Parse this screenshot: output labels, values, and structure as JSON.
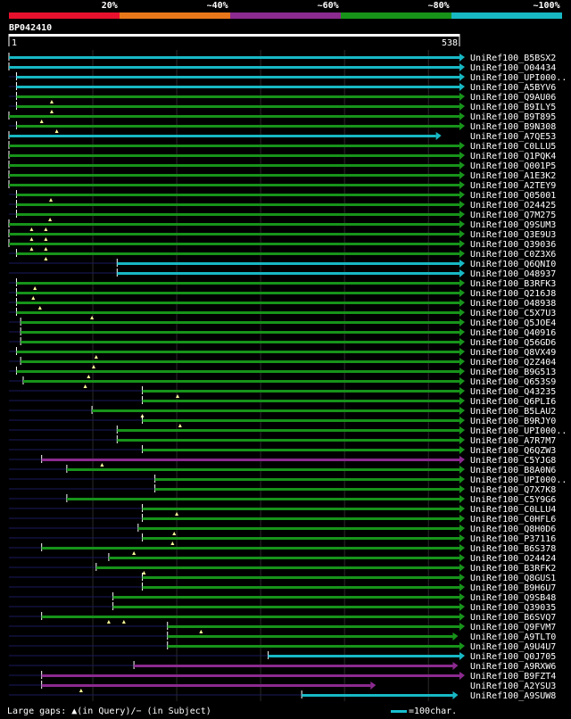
{
  "legend": {
    "labels": [
      "20%",
      "~40%",
      "~60%",
      "~80%",
      "~100%"
    ],
    "colors": [
      "#e8112d",
      "#e8771a",
      "#8b2a8f",
      "#17931a",
      "#17b8c4"
    ]
  },
  "query": {
    "id": "BP042410"
  },
  "footer": {
    "gaps_text": "Large gaps: ▲(in Query)/− (in Subject)",
    "scale_text": "=100char."
  },
  "chart_data": {
    "type": "alignment",
    "query_length": 538,
    "scale_start_label": "1",
    "scale_end_label": "538",
    "hits": [
      {
        "id": "UniRef100_B5BSX2",
        "start": 1,
        "end": 538,
        "identity": "~100%",
        "insertions": []
      },
      {
        "id": "UniRef100_O04434",
        "start": 1,
        "end": 538,
        "identity": "~100%",
        "insertions": []
      },
      {
        "id": "UniRef100_UPI000..",
        "start": 10,
        "end": 538,
        "identity": "~100%",
        "insertions": []
      },
      {
        "id": "UniRef100_A5BYV6",
        "start": 10,
        "end": 538,
        "identity": "~100%",
        "insertions": []
      },
      {
        "id": "UniRef100_Q9AU06",
        "start": 10,
        "end": 538,
        "identity": "~80%",
        "insertions": [
          52
        ]
      },
      {
        "id": "UniRef100_B9ILY5",
        "start": 10,
        "end": 538,
        "identity": "~80%",
        "insertions": [
          52
        ]
      },
      {
        "id": "UniRef100_B9T895",
        "start": -2,
        "end": 538,
        "identity": "~80%",
        "insertions": [
          40
        ]
      },
      {
        "id": "UniRef100_B9N308",
        "start": 10,
        "end": 538,
        "identity": "~80%",
        "insertions": [
          58
        ]
      },
      {
        "id": "UniRef100_A7QE53",
        "start": 1,
        "end": 510,
        "identity": "~100%",
        "insertions": []
      },
      {
        "id": "UniRef100_C0LLU5",
        "start": -2,
        "end": 538,
        "identity": "~80%",
        "insertions": []
      },
      {
        "id": "UniRef100_Q1PQK4",
        "start": 1,
        "end": 538,
        "identity": "~80%",
        "insertions": []
      },
      {
        "id": "UniRef100_Q001P5",
        "start": 1,
        "end": 538,
        "identity": "~80%",
        "insertions": []
      },
      {
        "id": "UniRef100_A1E3K2",
        "start": 1,
        "end": 538,
        "identity": "~80%",
        "insertions": []
      },
      {
        "id": "UniRef100_A2TEY9",
        "start": 1,
        "end": 538,
        "identity": "~80%",
        "insertions": []
      },
      {
        "id": "UniRef100_Q05001",
        "start": 10,
        "end": 538,
        "identity": "~80%",
        "insertions": [
          51
        ]
      },
      {
        "id": "UniRef100_O24425",
        "start": 10,
        "end": 538,
        "identity": "~80%",
        "insertions": []
      },
      {
        "id": "UniRef100_Q7M275",
        "start": 10,
        "end": 538,
        "identity": "~80%",
        "insertions": [
          50
        ]
      },
      {
        "id": "UniRef100_Q9SUM3",
        "start": 1,
        "end": 538,
        "identity": "~80%",
        "insertions": [
          28,
          45
        ]
      },
      {
        "id": "UniRef100_Q3E9U3",
        "start": 1,
        "end": 538,
        "identity": "~80%",
        "insertions": [
          28,
          45
        ]
      },
      {
        "id": "UniRef100_Q39036",
        "start": 1,
        "end": 538,
        "identity": "~80%",
        "insertions": [
          28,
          45
        ]
      },
      {
        "id": "UniRef100_C0Z3X6",
        "start": 10,
        "end": 538,
        "identity": "~80%",
        "insertions": [
          45
        ]
      },
      {
        "id": "UniRef100_Q6QNI0",
        "start": 130,
        "end": 538,
        "identity": "~100%",
        "insertions": []
      },
      {
        "id": "UniRef100_O48937",
        "start": 130,
        "end": 538,
        "identity": "~100%",
        "insertions": []
      },
      {
        "id": "UniRef100_B3RFK3",
        "start": 10,
        "end": 538,
        "identity": "~80%",
        "insertions": [
          32
        ]
      },
      {
        "id": "UniRef100_Q216J8",
        "start": 10,
        "end": 538,
        "identity": "~80%",
        "insertions": [
          30
        ]
      },
      {
        "id": "UniRef100_O48938",
        "start": 10,
        "end": 538,
        "identity": "~80%",
        "insertions": [
          38
        ]
      },
      {
        "id": "UniRef100_C5X7U3",
        "start": 10,
        "end": 538,
        "identity": "~80%",
        "insertions": [
          100
        ]
      },
      {
        "id": "UniRef100_Q5JOE4",
        "start": 15,
        "end": 538,
        "identity": "~80%",
        "insertions": []
      },
      {
        "id": "UniRef100_Q40916",
        "start": 15,
        "end": 538,
        "identity": "~80%",
        "insertions": []
      },
      {
        "id": "UniRef100_Q56GD6",
        "start": 15,
        "end": 538,
        "identity": "~80%",
        "insertions": []
      },
      {
        "id": "UniRef100_Q8VX49",
        "start": 10,
        "end": 538,
        "identity": "~80%",
        "insertions": [
          105
        ]
      },
      {
        "id": "UniRef100_Q2Z404",
        "start": 15,
        "end": 538,
        "identity": "~80%",
        "insertions": [
          102
        ]
      },
      {
        "id": "UniRef100_B9G513",
        "start": 10,
        "end": 538,
        "identity": "~80%",
        "insertions": [
          96
        ]
      },
      {
        "id": "UniRef100_Q653S9",
        "start": 18,
        "end": 538,
        "identity": "~80%",
        "insertions": [
          92
        ]
      },
      {
        "id": "UniRef100_Q43235",
        "start": 160,
        "end": 538,
        "identity": "~80%",
        "insertions": [
          202
        ]
      },
      {
        "id": "UniRef100_Q6PLI6",
        "start": 160,
        "end": 538,
        "identity": "~80%",
        "insertions": []
      },
      {
        "id": "UniRef100_B5LAU2",
        "start": 100,
        "end": 538,
        "identity": "~80%",
        "insertions": [
          160
        ]
      },
      {
        "id": "UniRef100_B9RJY0",
        "start": 160,
        "end": 538,
        "identity": "~80%",
        "insertions": [
          205
        ]
      },
      {
        "id": "UniRef100_UPI000..",
        "start": 130,
        "end": 538,
        "identity": "~80%",
        "insertions": []
      },
      {
        "id": "UniRef100_A7R7M7",
        "start": 130,
        "end": 538,
        "identity": "~80%",
        "insertions": []
      },
      {
        "id": "UniRef100_Q6QZW3",
        "start": 160,
        "end": 538,
        "identity": "~80%",
        "insertions": []
      },
      {
        "id": "UniRef100_C5YJG8",
        "start": 40,
        "end": 538,
        "identity": "~60%",
        "insertions": [
          112
        ]
      },
      {
        "id": "UniRef100_B8A0N6",
        "start": 70,
        "end": 538,
        "identity": "~80%",
        "insertions": []
      },
      {
        "id": "UniRef100_UPI000..",
        "start": 175,
        "end": 538,
        "identity": "~80%",
        "insertions": []
      },
      {
        "id": "UniRef100_Q7X7K8",
        "start": 175,
        "end": 538,
        "identity": "~80%",
        "insertions": []
      },
      {
        "id": "UniRef100_C5Y9G6",
        "start": 70,
        "end": 538,
        "identity": "~80%",
        "insertions": []
      },
      {
        "id": "UniRef100_C0LLU4",
        "start": 160,
        "end": 538,
        "identity": "~80%",
        "insertions": [
          201
        ]
      },
      {
        "id": "UniRef100_C0HFL6",
        "start": 160,
        "end": 538,
        "identity": "~80%",
        "insertions": []
      },
      {
        "id": "UniRef100_Q8H0D6",
        "start": 155,
        "end": 538,
        "identity": "~80%",
        "insertions": [
          198
        ]
      },
      {
        "id": "UniRef100_P37116",
        "start": 160,
        "end": 538,
        "identity": "~80%",
        "insertions": [
          196
        ]
      },
      {
        "id": "UniRef100_B6S378",
        "start": 40,
        "end": 538,
        "identity": "~80%",
        "insertions": [
          150
        ]
      },
      {
        "id": "UniRef100_O24424",
        "start": 120,
        "end": 538,
        "identity": "~80%",
        "insertions": []
      },
      {
        "id": "UniRef100_B3RFK2",
        "start": 105,
        "end": 538,
        "identity": "~80%",
        "insertions": [
          162
        ]
      },
      {
        "id": "UniRef100_Q8GUS1",
        "start": 160,
        "end": 538,
        "identity": "~80%",
        "insertions": []
      },
      {
        "id": "UniRef100_B9H6U7",
        "start": 160,
        "end": 538,
        "identity": "~80%",
        "insertions": []
      },
      {
        "id": "UniRef100_Q9SB48",
        "start": 125,
        "end": 538,
        "identity": "~80%",
        "insertions": []
      },
      {
        "id": "UniRef100_Q39035",
        "start": 125,
        "end": 538,
        "identity": "~80%",
        "insertions": []
      },
      {
        "id": "UniRef100_B6SVQ7",
        "start": 40,
        "end": 538,
        "identity": "~80%",
        "insertions": [
          120,
          138
        ]
      },
      {
        "id": "UniRef100_Q9FVM7",
        "start": 190,
        "end": 538,
        "identity": "~80%",
        "insertions": [
          230
        ]
      },
      {
        "id": "UniRef100_A9TLT0",
        "start": 190,
        "end": 530,
        "identity": "~80%",
        "insertions": []
      },
      {
        "id": "UniRef100_A9U4U7",
        "start": 190,
        "end": 538,
        "identity": "~80%",
        "insertions": []
      },
      {
        "id": "UniRef100_Q0J705",
        "start": 310,
        "end": 538,
        "identity": "~100%",
        "insertions": []
      },
      {
        "id": "UniRef100_A9RXW6",
        "start": 150,
        "end": 530,
        "identity": "~60%",
        "insertions": []
      },
      {
        "id": "UniRef100_B9FZT4",
        "start": 40,
        "end": 538,
        "identity": "~60%",
        "insertions": []
      },
      {
        "id": "UniRef100_A2YSU3",
        "start": 40,
        "end": 432,
        "identity": "~60%",
        "insertions": [
          87
        ]
      },
      {
        "id": "UniRef100_A9SUW8",
        "start": 350,
        "end": 530,
        "identity": "~100%",
        "insertions": []
      }
    ]
  }
}
